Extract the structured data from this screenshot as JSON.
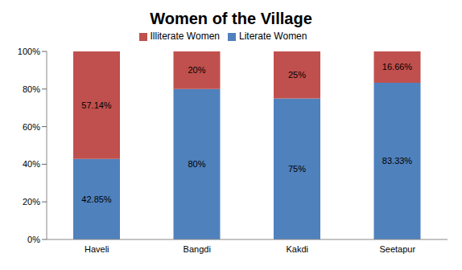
{
  "chart_data": {
    "type": "bar",
    "title": "Women of the Village",
    "categories": [
      "Haveli",
      "Bangdi",
      "Kakdi",
      "Seetapur"
    ],
    "stacked": true,
    "data_labels": true,
    "legend": "top",
    "grid": false,
    "ylim": [
      0,
      100
    ],
    "yticks": [
      {
        "value": 0,
        "label": "0%"
      },
      {
        "value": 20,
        "label": "20%"
      },
      {
        "value": 40,
        "label": "40%"
      },
      {
        "value": 60,
        "label": "60%"
      },
      {
        "value": 80,
        "label": "80%"
      },
      {
        "value": 100,
        "label": "100%"
      }
    ],
    "series": [
      {
        "name": "Literate Women",
        "color": "#4f81bd",
        "values": [
          42.85,
          80,
          75,
          83.33
        ],
        "value_labels": [
          "42.85%",
          "80%",
          "75%",
          "83.33%"
        ]
      },
      {
        "name": "Illiterate Women",
        "color": "#c0504d",
        "values": [
          57.14,
          20,
          25,
          16.66
        ],
        "value_labels": [
          "57.14%",
          "20%",
          "25%",
          "16.66%"
        ]
      }
    ]
  }
}
